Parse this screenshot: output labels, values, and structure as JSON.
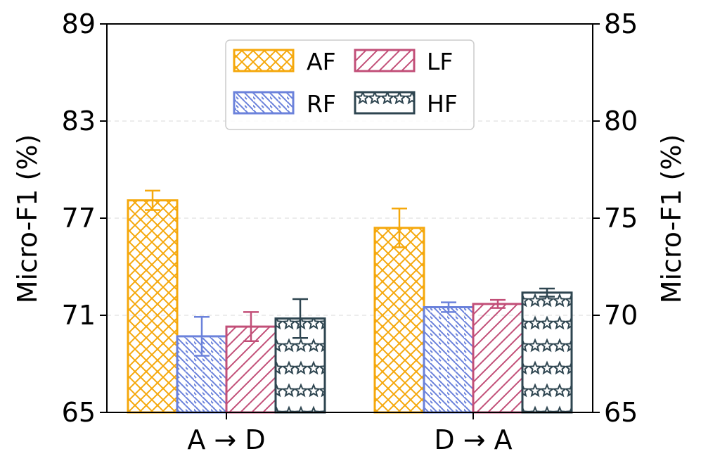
{
  "chart_data": {
    "type": "bar",
    "categories": [
      "A → D",
      "D → A"
    ],
    "series": [
      {
        "name": "AF",
        "color": "#F5A80C",
        "pattern": "crosshatch",
        "values": [
          78.1,
          76.4
        ],
        "errors": [
          0.6,
          1.2
        ]
      },
      {
        "name": "RF",
        "color": "#6B82DB",
        "pattern": "backslash",
        "values": [
          69.7,
          71.5
        ],
        "errors": [
          1.2,
          0.3
        ]
      },
      {
        "name": "LF",
        "color": "#C24F78",
        "pattern": "slash",
        "values": [
          70.3,
          71.7
        ],
        "errors": [
          0.9,
          0.25
        ]
      },
      {
        "name": "HF",
        "color": "#2E4550",
        "pattern": "stars",
        "values": [
          70.8,
          72.4
        ],
        "errors": [
          1.2,
          0.25
        ]
      }
    ],
    "ylabel_left": "Micro-F1 (%)",
    "ylabel_right": "Micro-F1 (%)",
    "ylim_left": [
      65,
      89
    ],
    "yticks_left": [
      "65",
      "71",
      "77",
      "83",
      "89"
    ],
    "ylim_right": [
      65,
      85
    ],
    "yticks_right": [
      "65",
      "70",
      "75",
      "80",
      "85"
    ],
    "grid": "horizontal dashed",
    "legend_position": "top-center"
  }
}
